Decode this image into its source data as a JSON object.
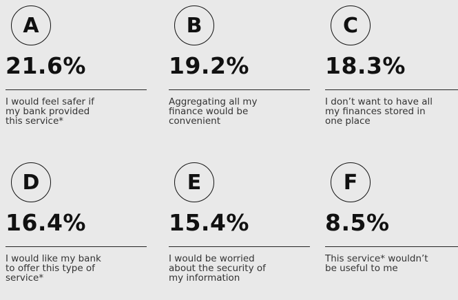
{
  "items": [
    {
      "letter": "A",
      "percent": "21.6%",
      "lines": [
        "I would feel safer if",
        "my bank provided",
        "this service*"
      ]
    },
    {
      "letter": "B",
      "percent": "19.2%",
      "lines": [
        "Aggregating all my",
        "finance would be",
        "convenient"
      ]
    },
    {
      "letter": "C",
      "percent": "18.3%",
      "lines": [
        "I don’t want to have all",
        "my finances stored in",
        "one place"
      ]
    },
    {
      "letter": "D",
      "percent": "16.4%",
      "lines": [
        "I would like my bank",
        "to offer this type of",
        "service*"
      ]
    },
    {
      "letter": "E",
      "percent": "15.4%",
      "lines": [
        "I would be worried",
        "about the security of",
        "my information"
      ]
    },
    {
      "letter": "F",
      "percent": "8.5%",
      "lines": [
        "This service* wouldn’t",
        "be useful to me"
      ]
    }
  ]
}
